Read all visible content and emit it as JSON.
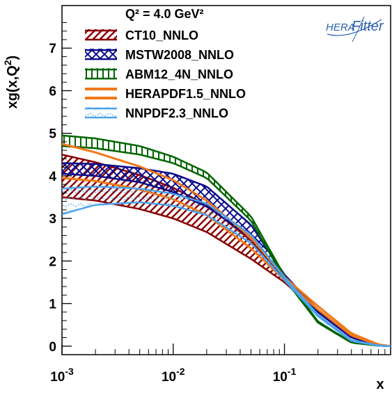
{
  "chart_data": {
    "type": "line",
    "title": "Q² = 4.0 GeV²",
    "xlabel": "x",
    "ylabel": "xg(x,Q²)",
    "xscale": "log",
    "xlim": [
      0.001,
      0.9
    ],
    "ylim": [
      -0.2,
      8.0
    ],
    "x_tick_labels": [
      {
        "x": 0.001,
        "base": "10",
        "exp": "-3"
      },
      {
        "x": 0.01,
        "base": "10",
        "exp": "-2"
      },
      {
        "x": 0.1,
        "base": "10",
        "exp": "-1"
      }
    ],
    "y_ticks": [
      0,
      1,
      2,
      3,
      4,
      5,
      6,
      7
    ],
    "y_tick_labels": [
      "0",
      "1",
      "2",
      "3",
      "4",
      "5",
      "6",
      "7"
    ],
    "legend_position": "top-left",
    "logo": {
      "text_a": "HERA",
      "text_b": "Fitter"
    },
    "series": [
      {
        "name": "CT10_NNLO",
        "color": "#8b0000",
        "pattern": "diagonal-hatch",
        "x": [
          0.001,
          0.002,
          0.005,
          0.01,
          0.02,
          0.05,
          0.1,
          0.2,
          0.4,
          0.7,
          0.9
        ],
        "lower": [
          3.5,
          3.42,
          3.22,
          3.0,
          2.68,
          2.05,
          1.5,
          0.8,
          0.2,
          0.02,
          0.0
        ],
        "upper": [
          4.5,
          4.32,
          4.02,
          3.72,
          3.32,
          2.48,
          1.62,
          0.86,
          0.24,
          0.03,
          0.0
        ]
      },
      {
        "name": "MSTW2008_NNLO",
        "color": "#0a0a8c",
        "pattern": "cross-hatch",
        "x": [
          0.001,
          0.002,
          0.005,
          0.01,
          0.02,
          0.05,
          0.1,
          0.2,
          0.4,
          0.7,
          0.9
        ],
        "lower": [
          4.05,
          4.0,
          3.85,
          3.62,
          3.28,
          2.55,
          1.58,
          0.8,
          0.2,
          0.02,
          0.0
        ],
        "upper": [
          4.3,
          4.28,
          4.18,
          4.05,
          3.75,
          2.85,
          1.68,
          0.84,
          0.22,
          0.03,
          0.0
        ]
      },
      {
        "name": "ABM12_4N_NNLO",
        "color": "#006400",
        "pattern": "vertical-hatch",
        "x": [
          0.001,
          0.002,
          0.005,
          0.01,
          0.02,
          0.05,
          0.1,
          0.2,
          0.4,
          0.7,
          0.9
        ],
        "lower": [
          4.7,
          4.65,
          4.5,
          4.3,
          3.95,
          2.95,
          1.58,
          0.55,
          0.08,
          0.01,
          0.0
        ],
        "upper": [
          4.95,
          4.88,
          4.7,
          4.45,
          4.08,
          3.05,
          1.65,
          0.58,
          0.09,
          0.01,
          0.0
        ]
      },
      {
        "name": "HERAPDF1.5_NNLO",
        "color": "#f07818",
        "pattern": "solid",
        "x": [
          0.001,
          0.002,
          0.005,
          0.01,
          0.02,
          0.05,
          0.1,
          0.2,
          0.4,
          0.7,
          0.9
        ],
        "lower": [
          3.95,
          3.88,
          3.68,
          3.45,
          3.08,
          2.3,
          1.55,
          0.86,
          0.25,
          0.03,
          0.0
        ],
        "upper": [
          4.75,
          4.55,
          4.22,
          3.9,
          3.42,
          2.55,
          1.62,
          0.94,
          0.3,
          0.04,
          0.0
        ]
      },
      {
        "name": "NNPDF2.3_NNLO",
        "color": "#4aa3ee",
        "pattern": "wavy",
        "x": [
          0.001,
          0.002,
          0.005,
          0.01,
          0.02,
          0.05,
          0.1,
          0.2,
          0.4,
          0.7,
          0.9
        ],
        "lower": [
          3.1,
          3.32,
          3.38,
          3.3,
          3.08,
          2.42,
          1.55,
          0.7,
          0.12,
          0.01,
          0.0
        ],
        "upper": [
          3.7,
          3.75,
          3.7,
          3.58,
          3.35,
          2.62,
          1.62,
          0.74,
          0.14,
          0.02,
          0.0
        ]
      }
    ]
  }
}
